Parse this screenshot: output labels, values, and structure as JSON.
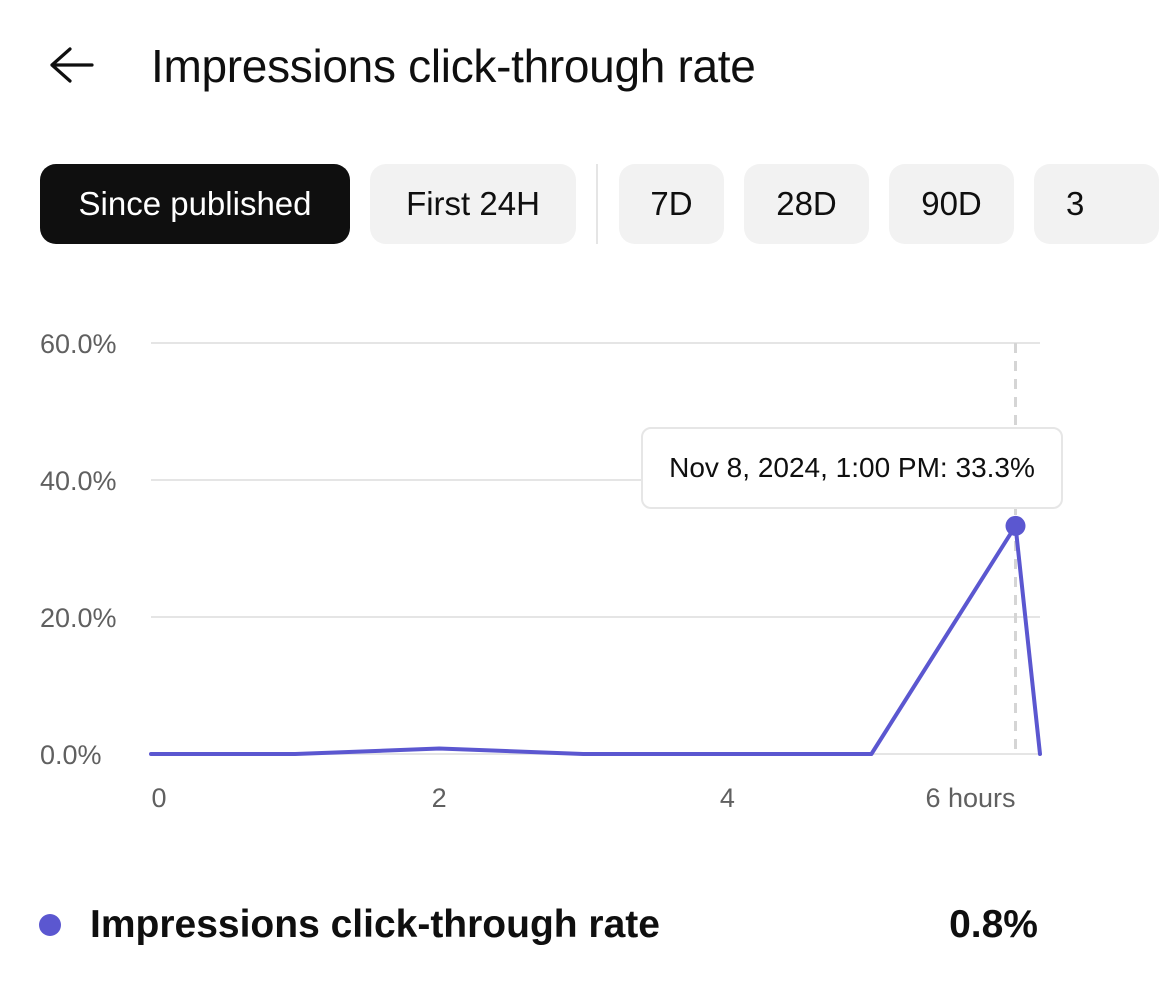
{
  "header": {
    "title": "Impressions click-through rate",
    "back_icon": "arrow-left-icon"
  },
  "chips": [
    {
      "label": "Since published",
      "selected": true
    },
    {
      "label": "First 24H",
      "selected": false
    },
    {
      "label": "7D",
      "selected": false
    },
    {
      "label": "28D",
      "selected": false
    },
    {
      "label": "90D",
      "selected": false
    },
    {
      "label": "3",
      "selected": false
    }
  ],
  "tooltip": {
    "text": "Nov 8, 2024, 1:00 PM: 33.3%"
  },
  "legend": {
    "label": "Impressions click-through rate",
    "value": "0.8%",
    "color": "#5b57d0"
  },
  "chart_data": {
    "type": "line",
    "x": [
      0,
      1,
      2,
      3,
      4,
      5,
      6,
      6.17
    ],
    "series": [
      {
        "name": "Impressions click-through rate",
        "values": [
          0,
          0,
          0.8,
          0,
          0,
          0,
          33.3,
          0
        ]
      }
    ],
    "x_ticks": [
      {
        "value": 0,
        "label": "0"
      },
      {
        "value": 2,
        "label": "2"
      },
      {
        "value": 4,
        "label": "4"
      },
      {
        "value": 6,
        "label": "6 hours"
      }
    ],
    "y_ticks": [
      {
        "value": 0,
        "label": "0.0%"
      },
      {
        "value": 20,
        "label": "20.0%"
      },
      {
        "value": 40,
        "label": "40.0%"
      },
      {
        "value": 60,
        "label": "60.0%"
      }
    ],
    "xlim": [
      0,
      6.17
    ],
    "ylim": [
      0,
      60
    ],
    "highlight_x": 6,
    "grid": true,
    "line_color": "#5b57d0",
    "grid_color": "#e5e5e5",
    "tick_color": "#606060"
  }
}
